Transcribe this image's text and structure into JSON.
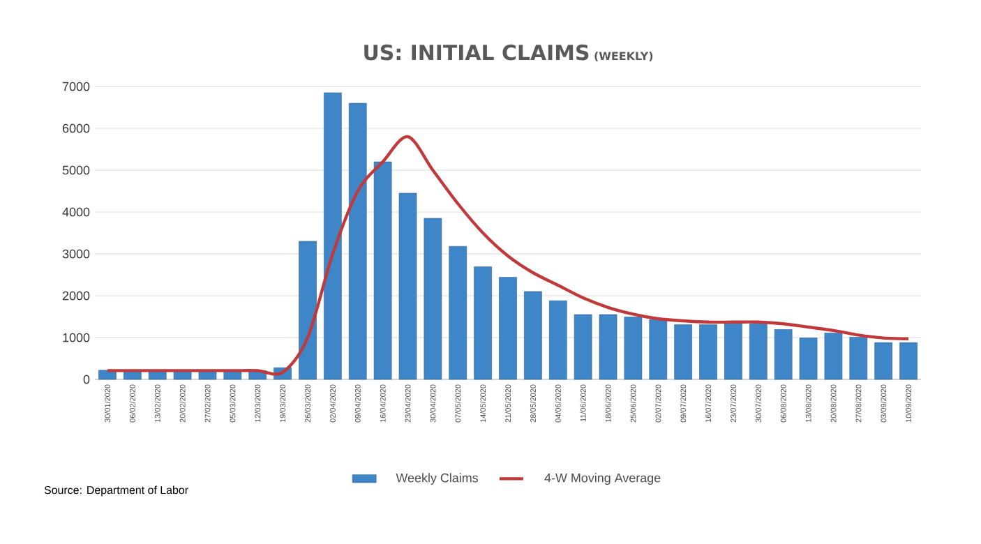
{
  "chart_data": {
    "type": "bar",
    "title": "US: INITIAL CLAIMS",
    "subtitle": "(WEEKLY)",
    "categories": [
      "30/01/2020",
      "06/02/2020",
      "13/02/2020",
      "20/02/2020",
      "27/02/2020",
      "05/03/2020",
      "12/03/2020",
      "19/03/2020",
      "26/03/2020",
      "02/04/2020",
      "09/04/2020",
      "16/04/2020",
      "23/04/2020",
      "30/04/2020",
      "07/05/2020",
      "14/05/2020",
      "21/05/2020",
      "28/05/2020",
      "04/06/2020",
      "11/06/2020",
      "18/06/2020",
      "25/06/2020",
      "02/07/2020",
      "09/07/2020",
      "16/07/2020",
      "23/07/2020",
      "30/07/2020",
      "06/08/2020",
      "13/08/2020",
      "20/08/2020",
      "27/08/2020",
      "03/09/2020",
      "10/09/2020"
    ],
    "series": [
      {
        "name": "Weekly Claims",
        "color": "#3f86c8",
        "values": [
          220,
          210,
          210,
          220,
          220,
          220,
          210,
          280,
          3300,
          6850,
          6600,
          5200,
          4450,
          3850,
          3180,
          2690,
          2440,
          2100,
          1880,
          1550,
          1550,
          1490,
          1430,
          1310,
          1310,
          1330,
          1330,
          1190,
          990,
          1110,
          1010,
          880,
          880
        ]
      },
      {
        "name": "4-W Moving Average",
        "type": "line",
        "color": "#c0393b",
        "values": [
          210,
          210,
          210,
          210,
          210,
          210,
          210,
          170,
          1000,
          3000,
          4500,
          5200,
          5800,
          5000,
          4200,
          3500,
          2950,
          2550,
          2250,
          1950,
          1720,
          1560,
          1450,
          1400,
          1370,
          1370,
          1370,
          1330,
          1250,
          1170,
          1060,
          990,
          970
        ]
      }
    ],
    "ylim": [
      0,
      7000
    ],
    "yticks": [
      0,
      1000,
      2000,
      3000,
      4000,
      5000,
      6000,
      7000
    ],
    "grid": "y",
    "legend": "bottom",
    "annotations": [
      "Source: Department of Labor"
    ]
  }
}
